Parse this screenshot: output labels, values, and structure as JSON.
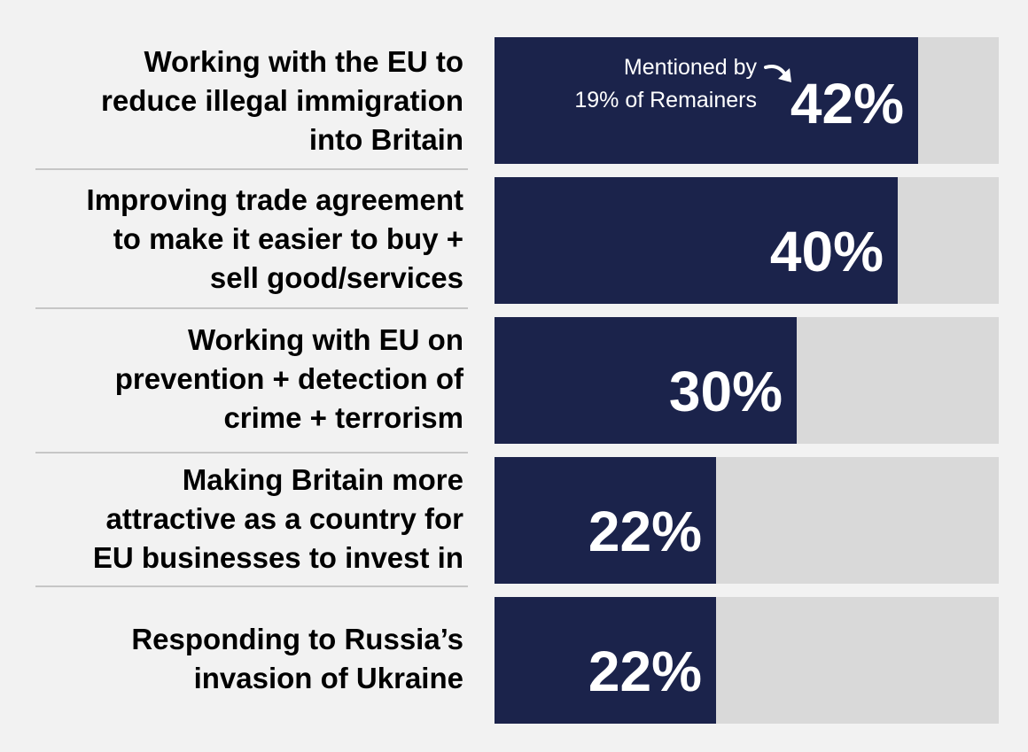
{
  "colors": {
    "bar_fill": "#1b234b",
    "bar_track": "#d9d9d9",
    "background": "#f2f2f2",
    "label_text": "#000000",
    "value_text": "#ffffff"
  },
  "annotation": {
    "lines": [
      "Mentioned by",
      "19% of Remainers"
    ],
    "target": "Working with the EU to reduce illegal immigration into Britain"
  },
  "chart_data": {
    "type": "bar",
    "orientation": "horizontal",
    "title": "",
    "xlabel": "",
    "ylabel": "",
    "xlim": [
      0,
      50
    ],
    "grid": false,
    "legend": "none",
    "value_suffix": "%",
    "categories": [
      [
        "Working with the EU to",
        "reduce illegal immigration",
        "into Britain"
      ],
      [
        "Improving trade agreement",
        "to make it easier to buy +",
        "sell good/services"
      ],
      [
        "Working with EU on",
        "prevention + detection of",
        "crime + terrorism"
      ],
      [
        "Making Britain more",
        "attractive as a country for",
        "EU businesses to invest in"
      ],
      [
        "Responding to Russia’s",
        "invasion of Ukraine"
      ]
    ],
    "values": [
      42,
      40,
      30,
      22,
      22
    ],
    "value_labels": [
      "42%",
      "40%",
      "30%",
      "22%",
      "22%"
    ]
  }
}
